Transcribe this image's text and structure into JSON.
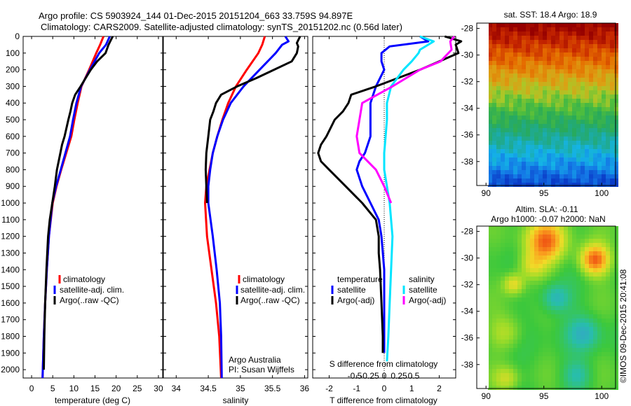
{
  "title_line1": "Argo profile: CS 5903924_144 01-Dec-2015 20151204_663 33.759S 94.897E",
  "title_line2": "Climatology: CARS2009. Satellite-adjusted climatology: synTS_20151202.nc (0.56d later)",
  "colors": {
    "climatology": "#ff0000",
    "satellite": "#0000ff",
    "argo": "#000000",
    "sal_sat": "#00e5ff",
    "sal_argo": "#ff00ff"
  },
  "depth_ticks": [
    "0",
    "100",
    "200",
    "300",
    "400",
    "500",
    "600",
    "700",
    "800",
    "900",
    "1000",
    "1100",
    "1200",
    "1300",
    "1400",
    "1500",
    "1600",
    "1700",
    "1800",
    "1900",
    "2000"
  ],
  "temp_panel": {
    "xlabel": "temperature (deg C)",
    "xticks": [
      "0",
      "5",
      "10",
      "15",
      "20",
      "25",
      "30"
    ],
    "legend": [
      "climatology",
      "satellite-adj. clim.",
      "Argo(..raw -QC)"
    ]
  },
  "sal_panel": {
    "xlabel": "salinity",
    "xticks": [
      "34",
      "34.5",
      "35",
      "35.5",
      "36"
    ],
    "legend": [
      "climatology",
      "satellite-adj. clim.",
      "Argo(..raw -QC)"
    ],
    "note1": "Argo Australia",
    "note2": "PI: Susan Wijffels"
  },
  "diff_panel": {
    "xlabel": "T difference from climatology",
    "xlabel2": "S difference from climatology",
    "xticks": [
      "-2",
      "-1",
      "0",
      "1",
      "2"
    ],
    "xticks2": [
      "-0.5",
      "-0.25",
      "0",
      "0.25",
      "0.5"
    ],
    "legend_t_title": "temperature",
    "legend_s_title": "salinity",
    "legend_t": [
      "satellite",
      "Argo(-adj)"
    ],
    "legend_s": [
      "satellite",
      "Argo(-adj)"
    ]
  },
  "sst_map": {
    "title": "sat. SST: 18.4  Argo: 18.9",
    "xticks": [
      "90",
      "95",
      "100"
    ],
    "yticks": [
      "-28",
      "-30",
      "-32",
      "-34",
      "-36",
      "-38"
    ]
  },
  "sla_map": {
    "title1": "Altim. SLA: -0.11",
    "title2": "Argo h1000: -0.07 h2000: NaN",
    "xticks": [
      "90",
      "95",
      "100"
    ],
    "yticks": [
      "-28",
      "-30",
      "-32",
      "-34",
      "-36",
      "-38"
    ]
  },
  "stamp": "©IMOS 09-Dec-2015 20:41:08",
  "chart_data": [
    {
      "type": "line",
      "xlabel": "temperature (deg C)",
      "ylabel": "",
      "xlim": [
        -2,
        31
      ],
      "ylim": [
        2050,
        0
      ],
      "series": [
        {
          "name": "climatology",
          "depth": [
            0,
            50,
            100,
            200,
            300,
            400,
            500,
            600,
            700,
            800,
            900,
            1000,
            1200,
            1400,
            1600,
            1800,
            2050
          ],
          "values": [
            17.0,
            16.2,
            15.3,
            13.6,
            11.8,
            10.9,
            10.1,
            9.4,
            8.2,
            7.0,
            5.9,
            5.0,
            4.1,
            3.6,
            3.2,
            2.9,
            2.6
          ]
        },
        {
          "name": "satellite-adj. clim.",
          "depth": [
            0,
            50,
            100,
            200,
            300,
            400,
            500,
            600,
            700,
            800,
            900,
            1000,
            1200,
            1400,
            1600,
            1800,
            2050
          ],
          "values": [
            18.5,
            17.6,
            16.0,
            13.8,
            11.7,
            10.6,
            9.8,
            9.1,
            8.0,
            6.9,
            5.8,
            4.9,
            4.1,
            3.6,
            3.2,
            2.9,
            2.6
          ]
        },
        {
          "name": "Argo(..raw -QC)",
          "depth": [
            0,
            30,
            50,
            100,
            150,
            200,
            250,
            300,
            350,
            400,
            450,
            500,
            600,
            650,
            700,
            800,
            900,
            1000,
            1100,
            1200,
            1400,
            1600,
            1800,
            2000
          ],
          "values": [
            19.2,
            18.6,
            18.2,
            17.5,
            15.5,
            14.0,
            12.8,
            11.6,
            10.3,
            9.6,
            9.2,
            8.7,
            7.8,
            7.2,
            6.8,
            6.0,
            5.5,
            4.9,
            4.3,
            3.9,
            3.5,
            3.2,
            3.0,
            2.9
          ]
        }
      ]
    },
    {
      "type": "line",
      "xlabel": "salinity",
      "ylabel": "",
      "xlim": [
        33.8,
        36.05
      ],
      "ylim": [
        2050,
        0
      ],
      "series": [
        {
          "name": "climatology",
          "depth": [
            0,
            50,
            100,
            200,
            300,
            400,
            500,
            600,
            700,
            800,
            900,
            1000,
            1200,
            1400,
            1600,
            1800,
            2050
          ],
          "values": [
            35.38,
            35.34,
            35.28,
            35.1,
            34.93,
            34.81,
            34.72,
            34.64,
            34.57,
            34.52,
            34.47,
            34.45,
            34.48,
            34.55,
            34.62,
            34.67,
            34.7
          ]
        },
        {
          "name": "satellite-adj. clim.",
          "depth": [
            0,
            30,
            50,
            100,
            200,
            300,
            400,
            500,
            600,
            700,
            800,
            900,
            1000,
            1200,
            1400,
            1600,
            1800,
            2050
          ],
          "values": [
            35.7,
            35.75,
            35.65,
            35.55,
            35.3,
            35.05,
            34.85,
            34.73,
            34.64,
            34.57,
            34.53,
            34.5,
            34.5,
            34.57,
            34.63,
            34.68,
            34.7,
            34.71
          ]
        },
        {
          "name": "Argo(..raw -QC)",
          "depth": [
            0,
            40,
            60,
            100,
            150,
            250,
            300,
            350,
            400,
            450,
            500,
            600,
            700,
            800,
            900,
            1000
          ],
          "values": [
            35.93,
            35.88,
            35.9,
            35.88,
            35.8,
            35.25,
            34.95,
            34.7,
            34.62,
            34.58,
            34.53,
            34.5,
            34.47,
            34.46,
            34.47,
            34.48
          ]
        }
      ]
    },
    {
      "type": "line",
      "xlabel": "T difference from climatology",
      "xlabel2": "S difference from climatology",
      "xlim": [
        -2.6,
        2.6
      ],
      "ylim": [
        2050,
        0
      ],
      "series": [
        {
          "name": "temperature satellite",
          "depth": [
            0,
            30,
            60,
            100,
            150,
            200,
            300,
            400,
            500,
            600,
            700,
            750,
            800,
            900,
            1000,
            1100,
            1200,
            1400,
            1600,
            1800,
            1900
          ],
          "values": [
            1.3,
            1.6,
            0.2,
            -0.1,
            -0.1,
            0.0,
            -0.3,
            -0.5,
            -0.5,
            -0.5,
            -0.7,
            -0.9,
            -1.0,
            -0.8,
            -0.5,
            -0.2,
            -0.1,
            0.0,
            0.0,
            0.0,
            0.0
          ]
        },
        {
          "name": "temperature Argo(-adj)",
          "depth": [
            0,
            30,
            50,
            100,
            150,
            200,
            250,
            300,
            350,
            400,
            450,
            500,
            600,
            650,
            700,
            750,
            800,
            900,
            1000,
            1100,
            1200,
            1300,
            1400,
            1600,
            1800,
            1900
          ],
          "values": [
            2.2,
            2.8,
            2.6,
            2.7,
            2.0,
            1.3,
            0.5,
            -0.3,
            -1.2,
            -1.3,
            -1.5,
            -1.8,
            -2.1,
            -2.3,
            -2.4,
            -2.3,
            -2.0,
            -1.4,
            -0.8,
            -0.3,
            -0.2,
            -0.2,
            -0.15,
            -0.1,
            -0.05,
            -0.05
          ]
        },
        {
          "name": "salinity satellite",
          "depth": [
            0,
            30,
            50,
            80,
            100,
            150,
            200,
            300,
            400,
            500,
            600,
            700,
            800,
            900,
            1000,
            1100,
            1200,
            1400,
            1600,
            1800,
            1950
          ],
          "values": [
            1.3,
            1.8,
            1.6,
            1.3,
            1.25,
            1.0,
            0.7,
            0.25,
            0.1,
            0.1,
            0.05,
            0.0,
            0.0,
            0.1,
            0.2,
            0.25,
            0.3,
            0.25,
            0.2,
            0.15,
            0.1
          ]
        },
        {
          "name": "salinity Argo(-adj)",
          "depth": [
            0,
            30,
            80,
            150,
            200,
            250,
            300,
            400,
            500,
            600,
            700,
            800,
            900,
            1000
          ],
          "values": [
            2.55,
            2.4,
            2.45,
            2.05,
            1.3,
            0.8,
            0.3,
            -0.8,
            -0.9,
            -1.0,
            -0.9,
            -0.3,
            0.0,
            0.25
          ]
        }
      ]
    }
  ]
}
